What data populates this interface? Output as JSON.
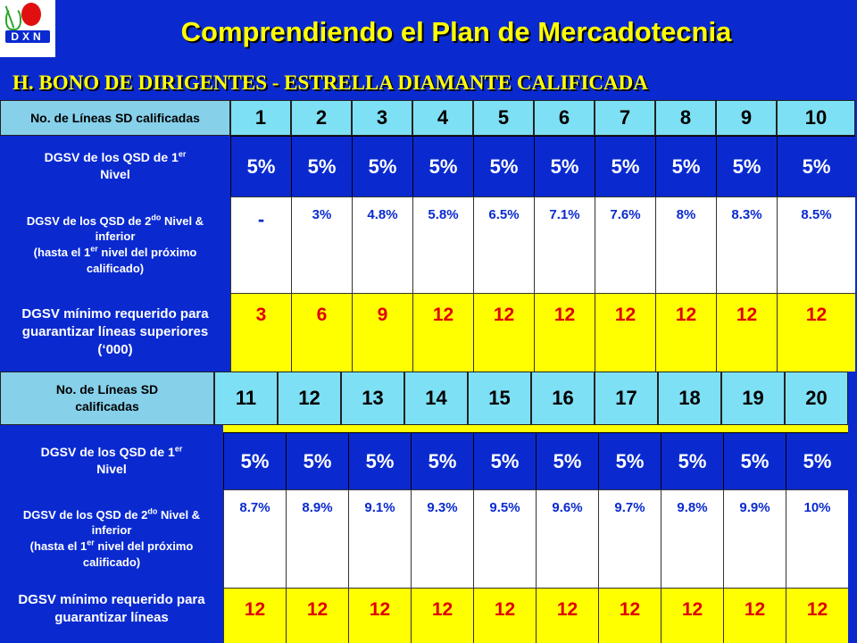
{
  "logo": {
    "brand": "DXN"
  },
  "title": "Comprendiendo el Plan de Mercadotecnia",
  "subtitle": "H.  BONO DE DIRIGENTES - ESTRELLA DIAMANTE CALIFICADA",
  "colors": {
    "blue": "#0a2ad0",
    "title_yellow": "#ffff00",
    "header_cyan": "#7ee0f4",
    "label_cyan": "#86d0ea",
    "required_yellow": "#ffff00",
    "required_text_red": "#e00000"
  },
  "table1": {
    "lines_label": "No. de Líneas SD calificadas",
    "lines": [
      "1",
      "2",
      "3",
      "4",
      "5",
      "6",
      "7",
      "8",
      "9",
      "10"
    ],
    "row1_label_a": "DGSV de los QSD de 1",
    "row1_label_sup": "er",
    "row1_label_b": "Nivel",
    "row1_values": [
      "5%",
      "5%",
      "5%",
      "5%",
      "5%",
      "5%",
      "5%",
      "5%",
      "5%",
      "5%"
    ],
    "row2_label_a": "DGSV de los QSD de 2",
    "row2_label_sup": "do",
    "row2_label_b": "Nivel & inferior",
    "row2_label_c": "(hasta el 1",
    "row2_label_sup2": "er",
    "row2_label_d": "nivel del próximo calificado)",
    "row2_values": [
      "-",
      "3%",
      "4.8%",
      "5.8%",
      "6.5%",
      "7.1%",
      "7.6%",
      "8%",
      "8.3%",
      "8.5%"
    ],
    "row3_label": "DGSV mínimo requerido para guarantizar líneas superiores  (‘000)",
    "row3_values": [
      "3",
      "6",
      "9",
      "12",
      "12",
      "12",
      "12",
      "12",
      "12",
      "12"
    ]
  },
  "table2": {
    "lines_label": "No. de Líneas SD calificadas",
    "lines": [
      "11",
      "12",
      "13",
      "14",
      "15",
      "16",
      "17",
      "18",
      "19",
      "20"
    ],
    "row1_label_a": "DGSV de los QSD de 1",
    "row1_label_sup": "er",
    "row1_label_b": "Nivel",
    "row1_values": [
      "5%",
      "5%",
      "5%",
      "5%",
      "5%",
      "5%",
      "5%",
      "5%",
      "5%",
      "5%"
    ],
    "row2_label_a": "DGSV de los QSD de 2",
    "row2_label_sup": "do",
    "row2_label_b": "Nivel & inferior",
    "row2_label_c": "(hasta el 1",
    "row2_label_sup2": "er",
    "row2_label_d": "nivel del próximo calificado)",
    "row2_values": [
      "8.7%",
      "8.9%",
      "9.1%",
      "9.3%",
      "9.5%",
      "9.6%",
      "9.7%",
      "9.8%",
      "9.9%",
      "10%"
    ],
    "row3_label": "DGSV mínimo requerido para guarantizar líneas",
    "row3_values": [
      "12",
      "12",
      "12",
      "12",
      "12",
      "12",
      "12",
      "12",
      "12",
      "12"
    ]
  }
}
